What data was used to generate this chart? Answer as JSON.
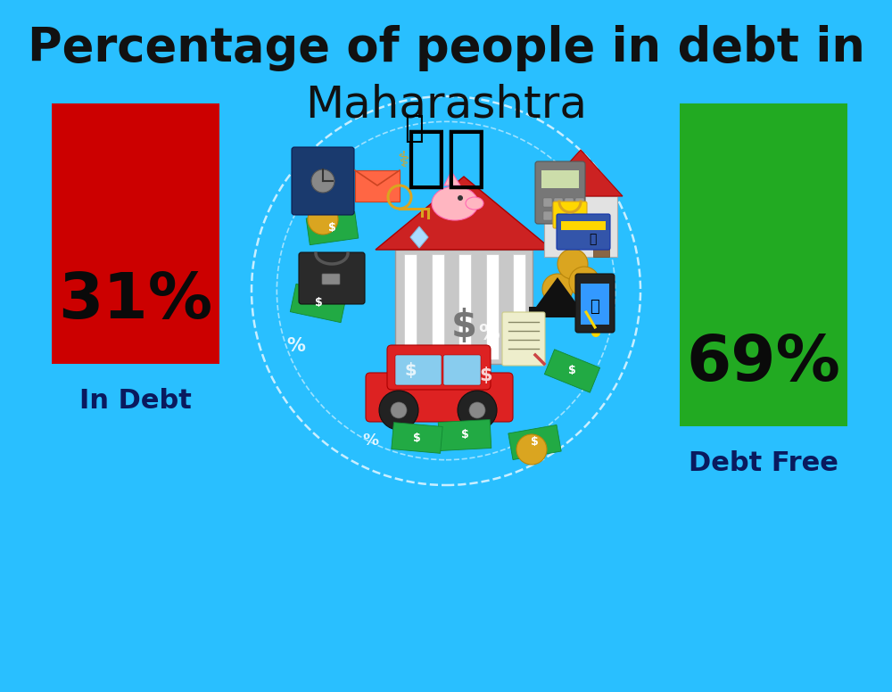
{
  "background_color": "#29BFFF",
  "title_line1": "Percentage of people in debt in",
  "title_line2": "Maharashtra",
  "title_fontsize": 38,
  "title2_fontsize": 36,
  "title_color": "#111111",
  "title_fontweight": "bold",
  "bar_left_pct": "31%",
  "bar_right_pct": "69%",
  "bar_left_label": "In Debt",
  "bar_right_label": "Debt Free",
  "bar_left_color": "#CC0000",
  "bar_right_color": "#22AA22",
  "pct_fontsize": 52,
  "label_fontsize": 22,
  "label_color": "#0a1a5e",
  "pct_color": "#0a0a0a",
  "flag_fontsize": 55
}
